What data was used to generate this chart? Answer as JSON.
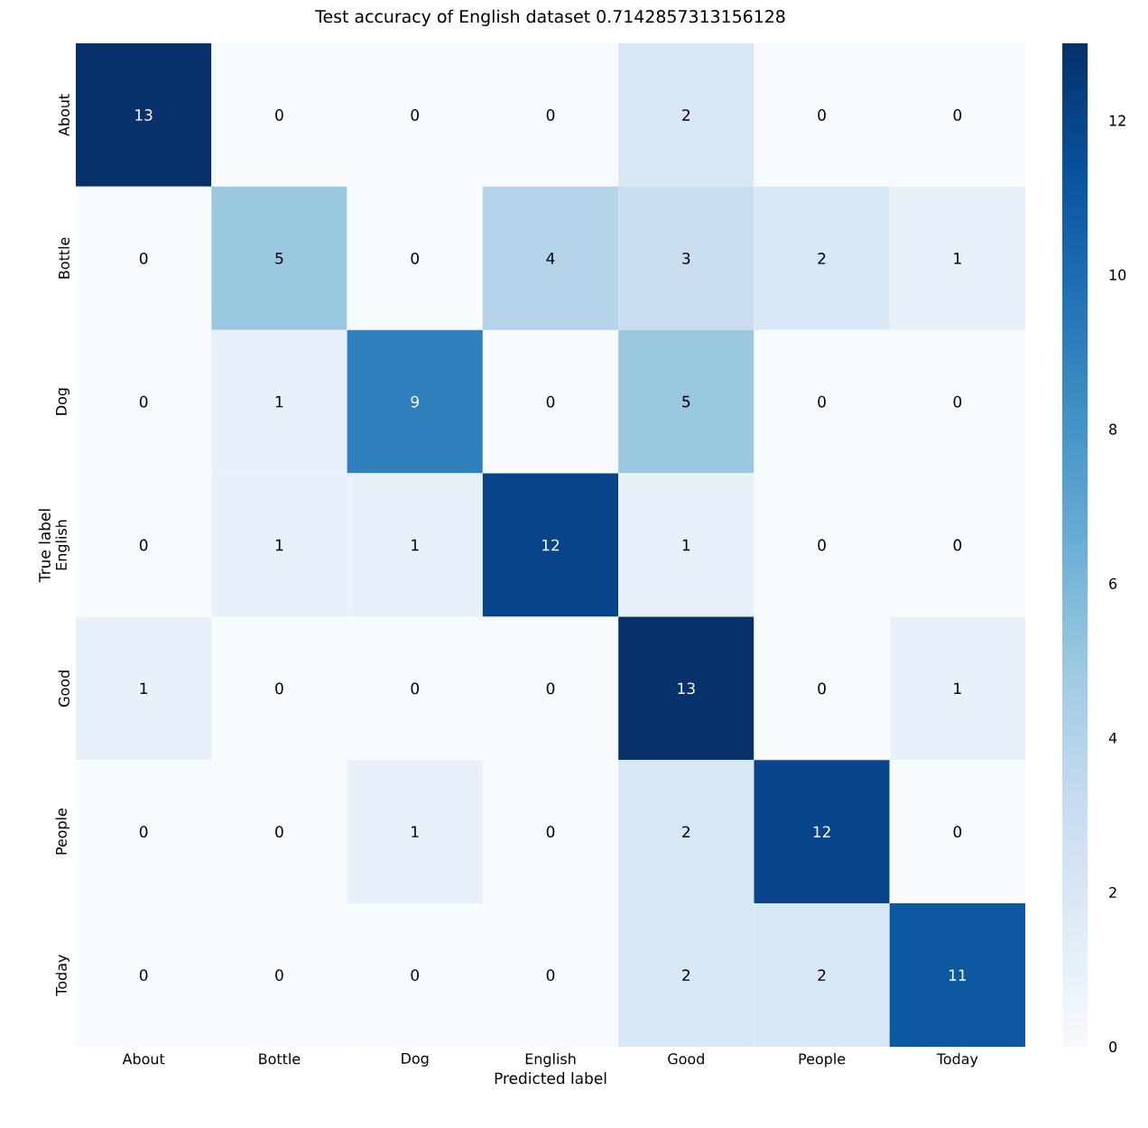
{
  "chart_data": {
    "type": "heatmap",
    "title": "Test accuracy of English dataset 0.7142857313156128",
    "xlabel": "Predicted label",
    "ylabel": "True label",
    "categories": [
      "About",
      "Bottle",
      "Dog",
      "English",
      "Good",
      "People",
      "Today"
    ],
    "y_categories": [
      "About",
      "Bottle",
      "Dog",
      "English",
      "Good",
      "People",
      "Today"
    ],
    "cells": [
      [
        13,
        0,
        0,
        0,
        2,
        0,
        0
      ],
      [
        0,
        5,
        0,
        4,
        3,
        2,
        1
      ],
      [
        0,
        1,
        9,
        0,
        5,
        0,
        0
      ],
      [
        0,
        1,
        1,
        12,
        1,
        0,
        0
      ],
      [
        1,
        0,
        0,
        0,
        13,
        0,
        1
      ],
      [
        0,
        0,
        1,
        0,
        2,
        12,
        0
      ],
      [
        0,
        0,
        0,
        0,
        2,
        2,
        11
      ]
    ],
    "clim": [
      0,
      13
    ],
    "cticks": [
      0,
      2,
      4,
      6,
      8,
      10,
      12
    ],
    "data_labels": true
  }
}
